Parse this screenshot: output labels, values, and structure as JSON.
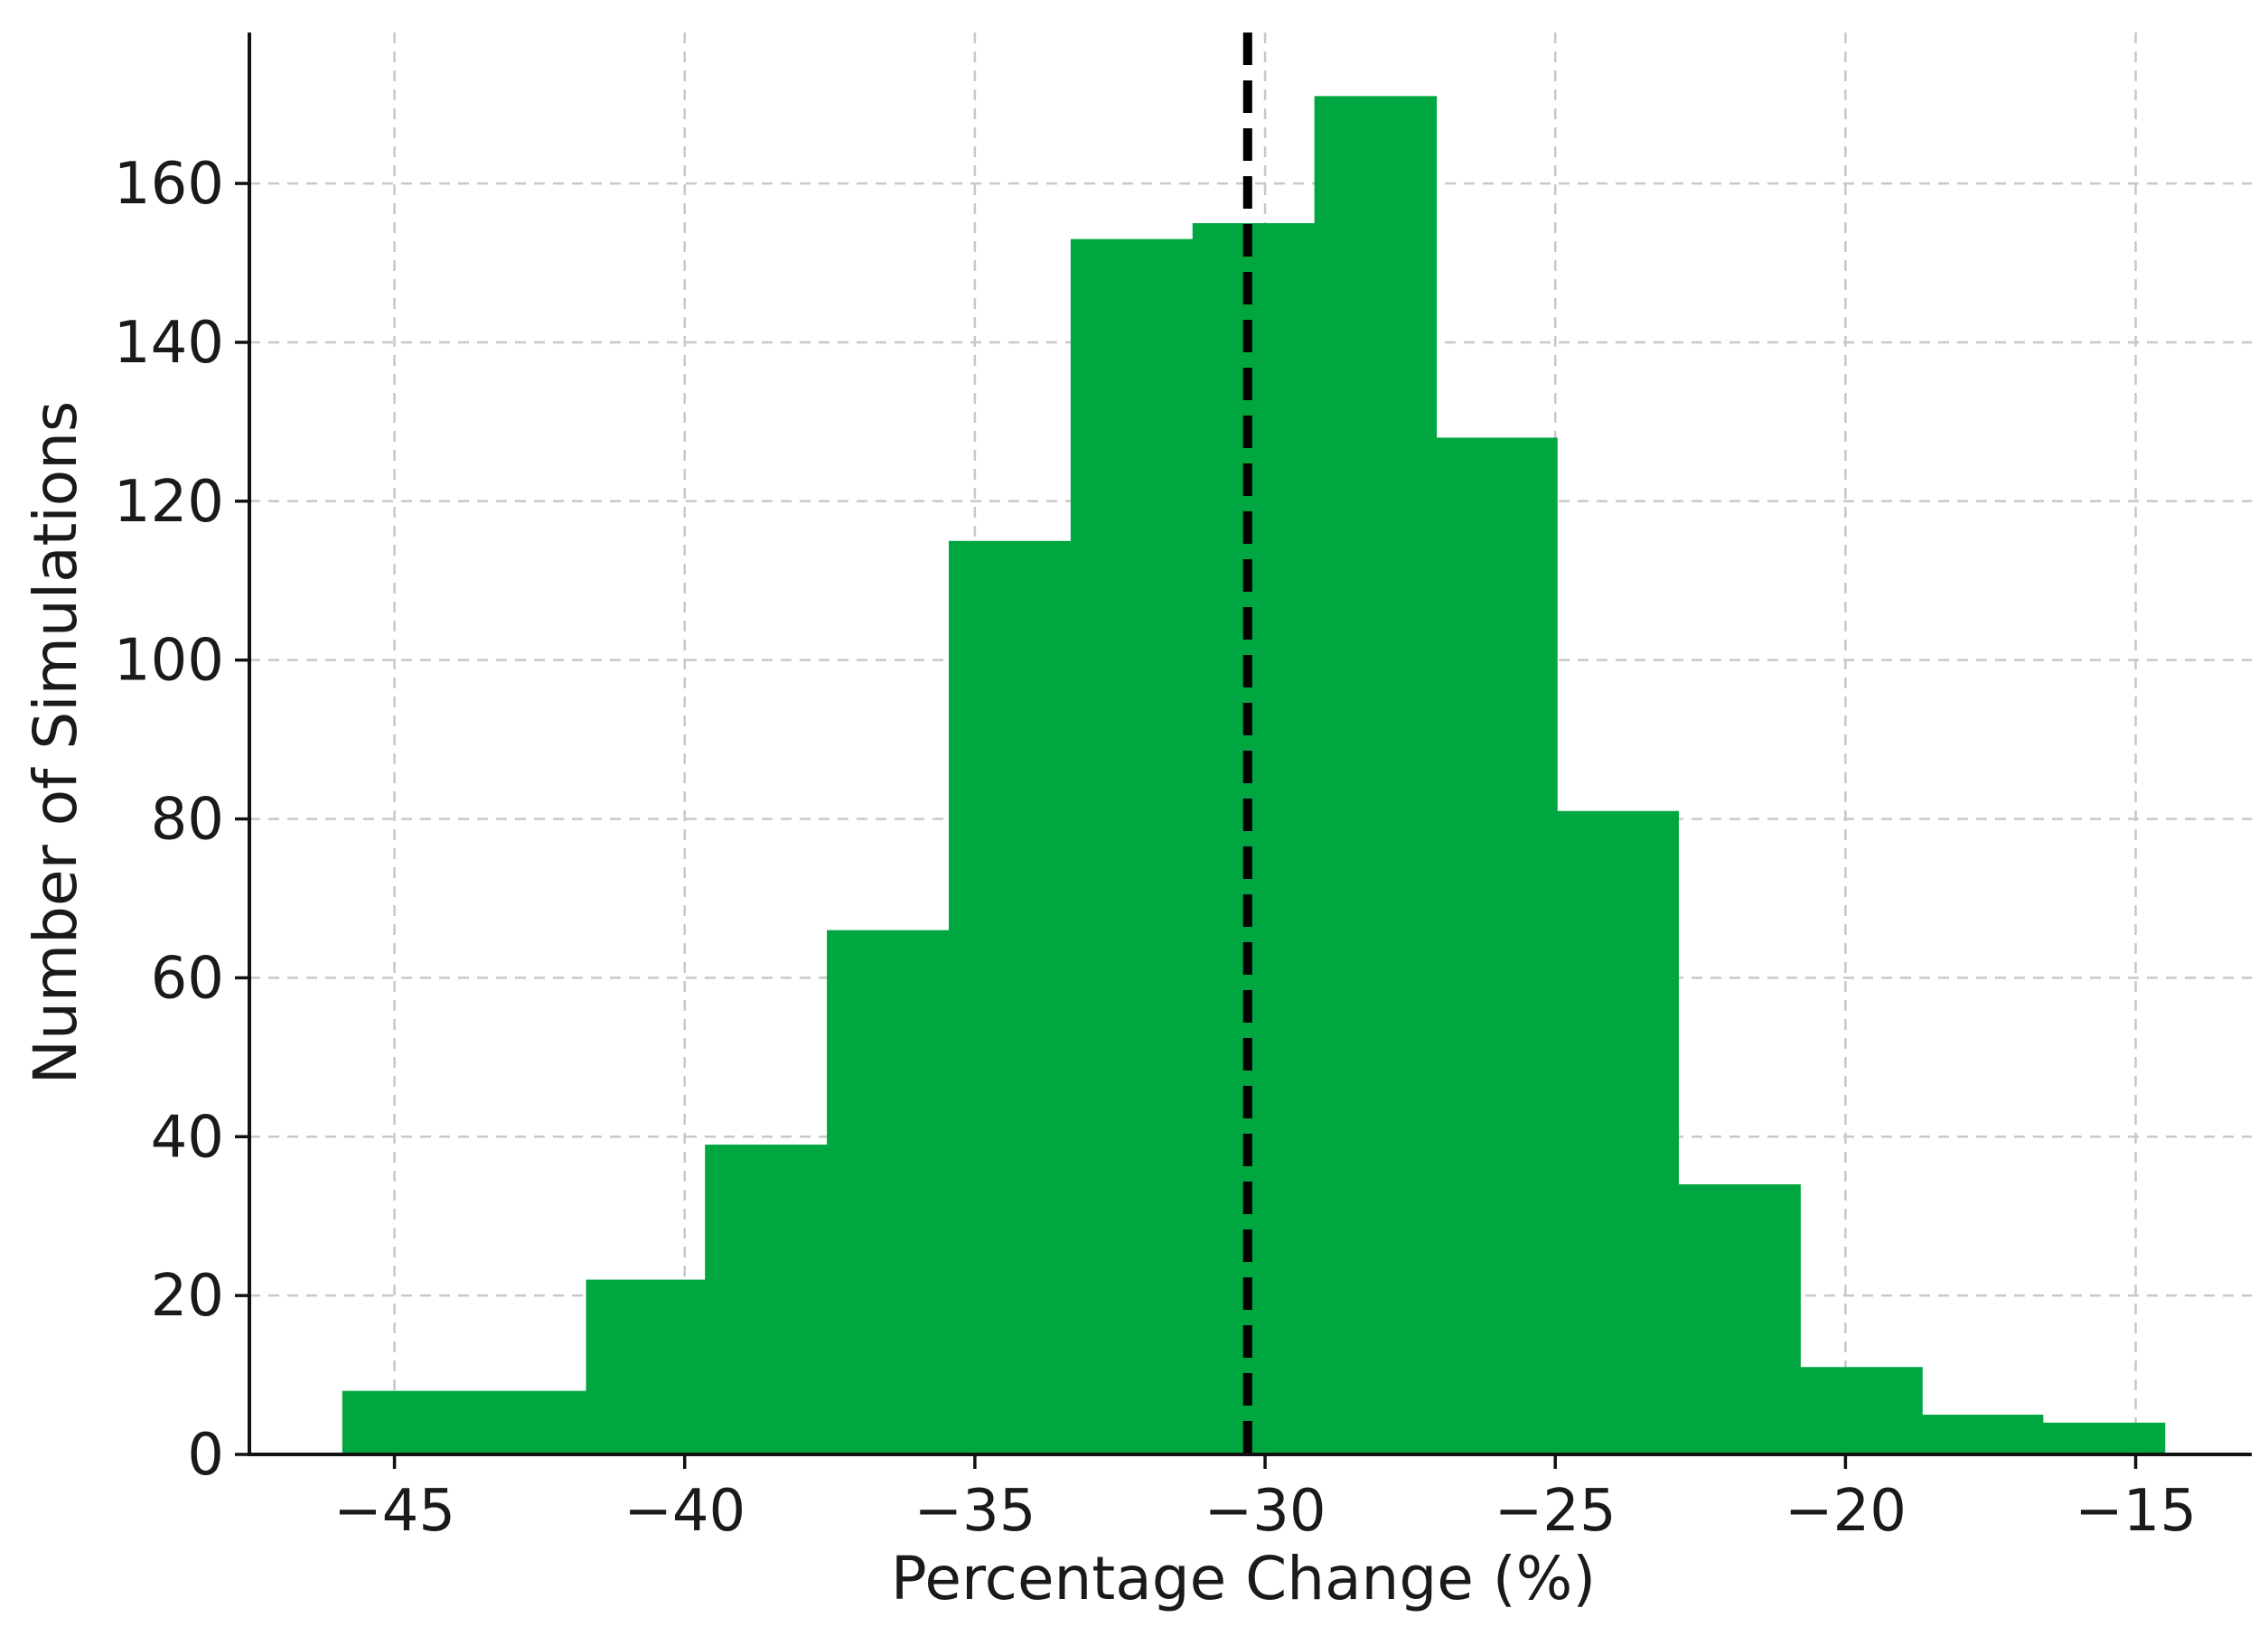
{
  "chart_data": {
    "type": "histogram",
    "title": "",
    "xlabel": "Percentage Change (%)",
    "ylabel": "Number of Simulations",
    "xlim": [
      -47.5,
      -13.0
    ],
    "ylim": [
      0,
      179
    ],
    "xticks": [
      -45,
      -40,
      -35,
      -30,
      -25,
      -20,
      -15
    ],
    "xtick_labels": [
      "−45",
      "−40",
      "−35",
      "−30",
      "−25",
      "−20",
      "−15"
    ],
    "yticks": [
      0,
      20,
      40,
      60,
      80,
      100,
      120,
      140,
      160
    ],
    "ytick_labels": [
      "0",
      "20",
      "40",
      "60",
      "80",
      "100",
      "120",
      "140",
      "160"
    ],
    "grid": true,
    "bar_color": "#00a63f",
    "bin_edges": [
      -45.9,
      -43.8,
      -41.7,
      -39.65,
      -37.55,
      -35.45,
      -33.35,
      -31.25,
      -29.15,
      -27.05,
      -24.97,
      -22.88,
      -20.78,
      -18.68,
      -16.6,
      -14.5
    ],
    "counts": [
      8,
      8,
      22,
      39,
      66,
      115,
      153,
      155,
      171,
      128,
      81,
      34,
      11,
      5,
      4
    ],
    "reference_line": {
      "x": -30.3,
      "style": "dashed",
      "color": "#000000"
    }
  }
}
